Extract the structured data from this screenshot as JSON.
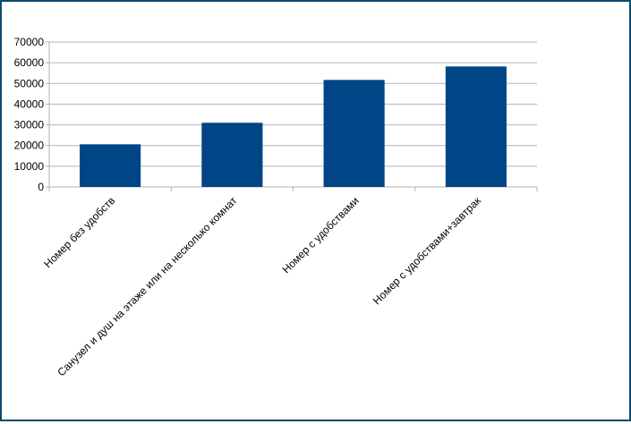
{
  "chart_data": {
    "type": "bar",
    "categories": [
      "Номер без удобств",
      "Санузел и душ на этаже или на несколько комнат",
      "Номер с удобствами",
      "Номер с удобствами+завтрак"
    ],
    "values": [
      20600,
      31000,
      51700,
      58200
    ],
    "color": "#004586",
    "ylim": [
      0,
      70000
    ],
    "yticks": [
      0,
      10000,
      20000,
      30000,
      40000,
      50000,
      60000,
      70000
    ],
    "grid": true
  }
}
